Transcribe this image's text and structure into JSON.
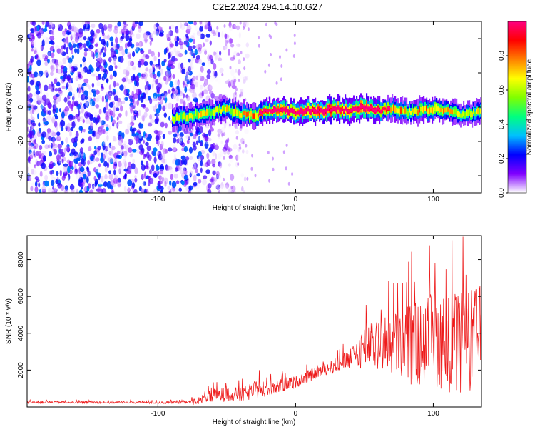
{
  "title": "C2E2.2024.294.14.10.G27",
  "chart_data": [
    {
      "type": "heatmap",
      "name": "spectrogram",
      "xlabel": "Height of straight line (km)",
      "ylabel": "Frequency (Hz)",
      "xlim": [
        -195,
        135
      ],
      "ylim": [
        -50,
        50
      ],
      "xticks": [
        -100,
        0,
        100
      ],
      "yticks": [
        -40,
        -20,
        0,
        20,
        40
      ],
      "grid": false,
      "signal_band": {
        "description": "narrow high-amplitude band near 0 Hz from about -90 km to 135 km",
        "x": [
          -90,
          -70,
          -50,
          -40,
          -30,
          -20,
          -10,
          0,
          10,
          20,
          30,
          40,
          50,
          60,
          70,
          80,
          90,
          100,
          110,
          120,
          135
        ],
        "center_hz": [
          -7,
          -4,
          -1,
          -4,
          -5,
          -2,
          -2,
          -3,
          -2,
          -2,
          -1,
          -2,
          0,
          -2,
          -1,
          -3,
          -2,
          -1,
          -2,
          -4,
          -3
        ],
        "peak_amplitude": [
          0.45,
          0.5,
          0.5,
          0.55,
          0.6,
          0.7,
          0.8,
          0.75,
          0.85,
          0.9,
          0.85,
          0.8,
          0.85,
          0.7,
          0.6,
          0.55,
          0.6,
          0.6,
          0.55,
          0.5,
          0.5
        ]
      },
      "noise_region": {
        "description": "broadband low-amplitude noise",
        "x_range": [
          -195,
          -40
        ],
        "amplitude_range": [
          0.0,
          0.3
        ]
      },
      "colorbar": {
        "label": "Normalized spectral amplitude",
        "range": [
          0.0,
          1.0
        ],
        "ticks": [
          0.0,
          0.2,
          0.4,
          0.6,
          0.8
        ],
        "colormap": [
          "#ffffff",
          "#8000ff",
          "#0000ff",
          "#00c0ff",
          "#00ff80",
          "#80ff00",
          "#ffff00",
          "#ff8000",
          "#ff0000",
          "#ff0080"
        ]
      }
    },
    {
      "type": "line",
      "name": "snr",
      "xlabel": "Height of straight line (km)",
      "ylabel": "SNR (10 * v/v)",
      "xlim": [
        -195,
        135
      ],
      "ylim": [
        0,
        9300
      ],
      "xticks": [
        -100,
        0,
        100
      ],
      "yticks": [
        2000,
        4000,
        6000,
        8000
      ],
      "grid": false,
      "series": [
        {
          "name": "SNR",
          "color": "#ee1c1c",
          "x": [
            -195,
            -180,
            -160,
            -140,
            -120,
            -100,
            -80,
            -70,
            -60,
            -50,
            -40,
            -30,
            -20,
            -10,
            0,
            10,
            20,
            30,
            40,
            50,
            60,
            70,
            80,
            90,
            100,
            110,
            120,
            135
          ],
          "y": [
            250,
            260,
            260,
            250,
            250,
            240,
            250,
            350,
            600,
            700,
            650,
            900,
            1100,
            1200,
            1350,
            1700,
            2000,
            2300,
            2600,
            3300,
            3300,
            3500,
            3600,
            3300,
            3700,
            3500,
            3300,
            3800
          ],
          "spread": [
            80,
            80,
            80,
            80,
            80,
            80,
            100,
            250,
            500,
            500,
            500,
            600,
            700,
            500,
            400,
            400,
            400,
            500,
            700,
            1500,
            1700,
            2200,
            3000,
            3000,
            3200,
            3400,
            3600,
            3600
          ]
        }
      ]
    }
  ]
}
